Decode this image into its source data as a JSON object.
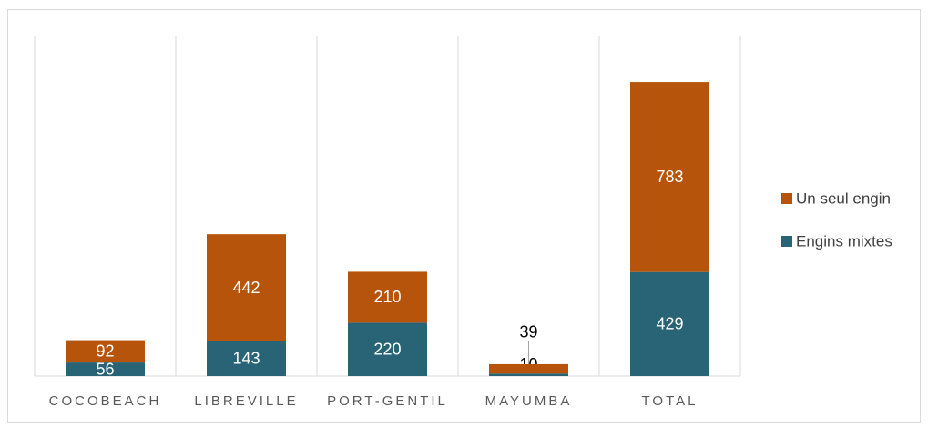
{
  "chart_data": {
    "type": "stacked_bar",
    "categories": [
      "COCOBEACH",
      "LIBREVILLE",
      "PORT-GENTIL",
      "MAYUMBA",
      "TOTAL"
    ],
    "series": [
      {
        "name": "Engins mixtes",
        "color": "#286476",
        "values": [
          56,
          143,
          220,
          10,
          429
        ]
      },
      {
        "name": "Un seul engin",
        "color": "#b5540a",
        "values": [
          92,
          442,
          210,
          39,
          783
        ]
      }
    ],
    "ylim": [
      0,
      1400
    ],
    "legend": "right"
  }
}
